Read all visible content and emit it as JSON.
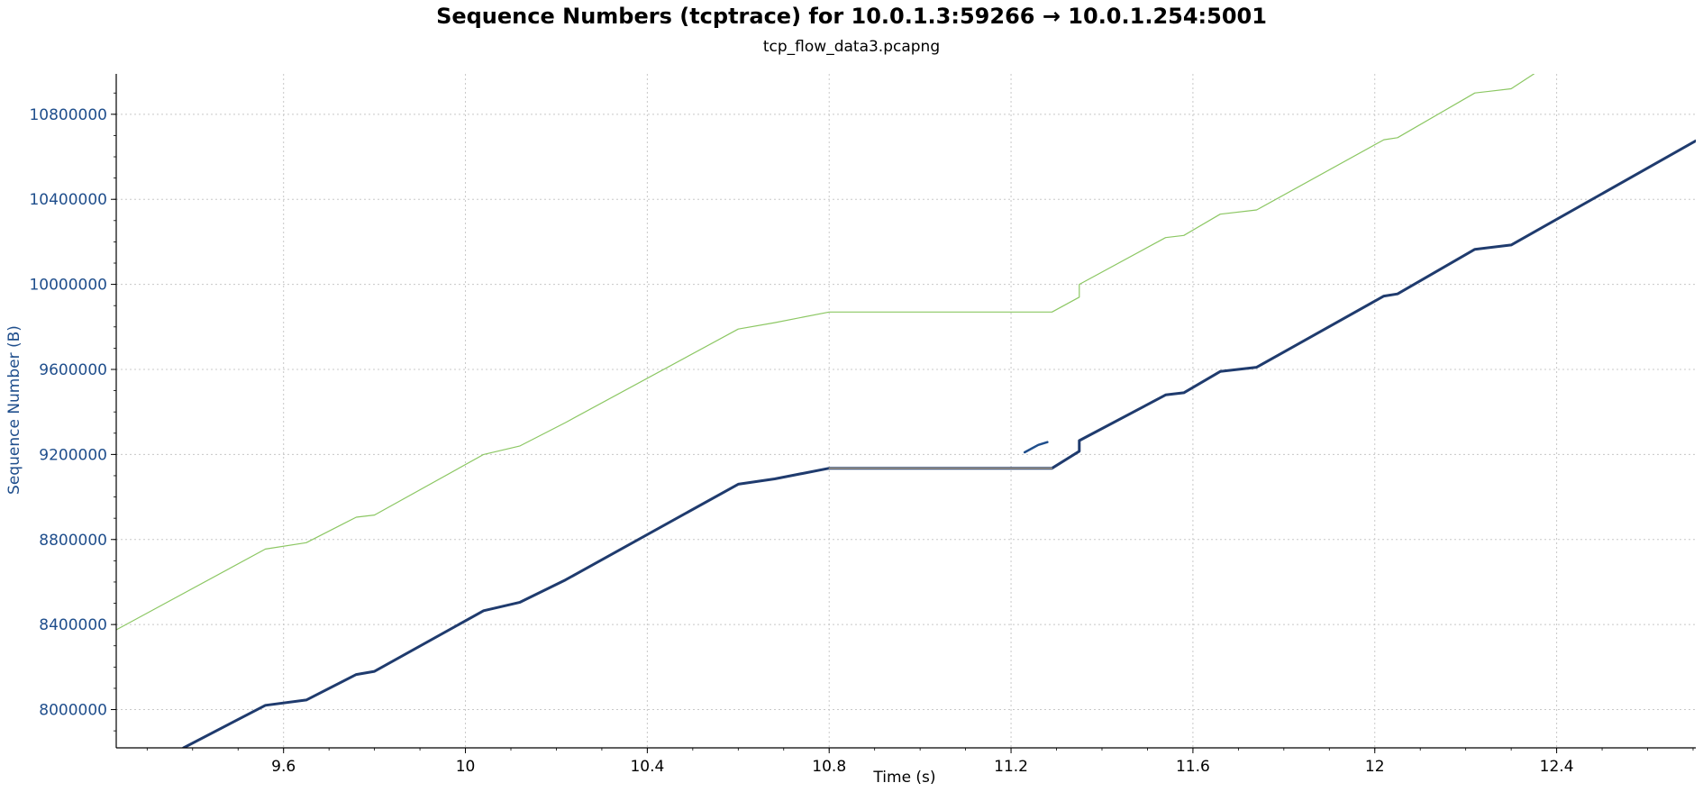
{
  "chart_data": {
    "type": "line",
    "title": "Sequence Numbers (tcptrace) for 10.0.1.3:59266 → 10.0.1.254:5001",
    "subtitle": "tcp_flow_data3.pcapng",
    "xlabel": "Time (s)",
    "ylabel": "Sequence Number (B)",
    "xlim": [
      9.232,
      12.706
    ],
    "ylim": [
      7820000,
      10990000
    ],
    "grid": true,
    "x_ticks": [
      9.6,
      10,
      10.4,
      10.8,
      11.2,
      11.6,
      12,
      12.4
    ],
    "x_tick_labels": [
      "9.6",
      "10",
      "10.4",
      "10.8",
      "11.2",
      "11.6",
      "12",
      "12.4"
    ],
    "y_ticks": [
      8000000,
      8400000,
      8800000,
      9200000,
      9600000,
      10000000,
      10400000,
      10800000
    ],
    "y_tick_labels": [
      "8000000",
      "8400000",
      "8800000",
      "9200000",
      "9600000",
      "10000000",
      "10400000",
      "10800000"
    ],
    "colors": {
      "sequence": "#1f3b6e",
      "receive_window": "#8cc763",
      "ack_line": "#c8b28c",
      "axis_label": "#1f4e8c"
    },
    "series": [
      {
        "key": "receive_window",
        "color": "#8cc763",
        "x": [
          9.232,
          9.56,
          9.65,
          9.76,
          9.8,
          10.04,
          10.12,
          10.22,
          10.6,
          10.68,
          10.8,
          11.29,
          11.35,
          11.35,
          11.54,
          11.58,
          11.66,
          11.74,
          12.02,
          12.05,
          12.22,
          12.3,
          12.35
        ],
        "y": [
          8375000,
          8755000,
          8785000,
          8905000,
          8915000,
          9200000,
          9240000,
          9350000,
          9790000,
          9820000,
          9870000,
          9870000,
          9940000,
          10000000,
          10220000,
          10230000,
          10330000,
          10350000,
          10680000,
          10690000,
          10900000,
          10920000,
          10990000
        ]
      },
      {
        "key": "sequence",
        "color": "#1f3b6e",
        "x": [
          9.38,
          9.56,
          9.65,
          9.76,
          9.8,
          10.04,
          10.12,
          10.22,
          10.6,
          10.68,
          10.8,
          11.29,
          11.35,
          11.35,
          11.54,
          11.58,
          11.66,
          11.74,
          12.02,
          12.05,
          12.22,
          12.3,
          12.706
        ],
        "y": [
          7820000,
          8020000,
          8045000,
          8165000,
          8180000,
          8465000,
          8505000,
          8610000,
          9060000,
          9085000,
          9135000,
          9135000,
          9215000,
          9265000,
          9480000,
          9490000,
          9590000,
          9610000,
          9945000,
          9955000,
          10165000,
          10185000,
          10675000
        ]
      },
      {
        "key": "ack_line",
        "color": "#c8b28c",
        "x": [
          10.8,
          11.29
        ],
        "y": [
          9135000,
          9135000
        ]
      },
      {
        "key": "retransmit_segment",
        "color": "#1f4e8c",
        "x": [
          11.23,
          11.26,
          11.28
        ],
        "y": [
          9210000,
          9245000,
          9258000
        ]
      }
    ]
  }
}
